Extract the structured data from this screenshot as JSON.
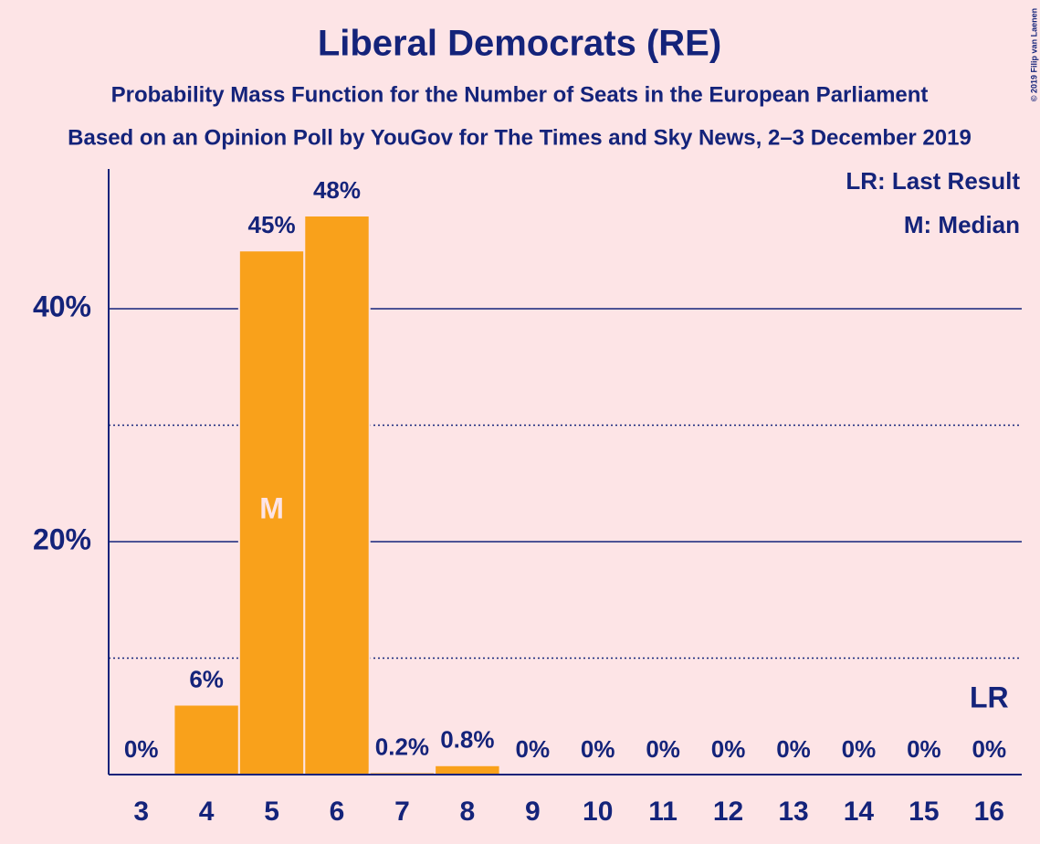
{
  "chart_data": {
    "type": "bar",
    "title": "Liberal Democrats (RE)",
    "subtitle": "Probability Mass Function for the Number of Seats in the European Parliament",
    "subtitle2": "Based on an Opinion Poll by YouGov for The Times and Sky News, 2–3 December 2019",
    "credit": "© 2019 Filip van Laenen",
    "legend": [
      "LR: Last Result",
      "M: Median"
    ],
    "categories": [
      "3",
      "4",
      "5",
      "6",
      "7",
      "8",
      "9",
      "10",
      "11",
      "12",
      "13",
      "14",
      "15",
      "16"
    ],
    "values": [
      0,
      6,
      45,
      48,
      0.2,
      0.8,
      0,
      0,
      0,
      0,
      0,
      0,
      0,
      0
    ],
    "value_labels": [
      "0%",
      "6%",
      "45%",
      "48%",
      "0.2%",
      "0.8%",
      "0%",
      "0%",
      "0%",
      "0%",
      "0%",
      "0%",
      "0%",
      "0%"
    ],
    "color": "#f9a11b",
    "annotations": [
      {
        "label": "M",
        "category": "5"
      },
      {
        "label": "LR",
        "category": "16"
      }
    ],
    "ylim": [
      0,
      52
    ],
    "yticks": [
      {
        "value": 20,
        "label": "20%"
      },
      {
        "value": 40,
        "label": "40%"
      }
    ],
    "minor_yticks": [
      10,
      30
    ],
    "grid": true
  }
}
